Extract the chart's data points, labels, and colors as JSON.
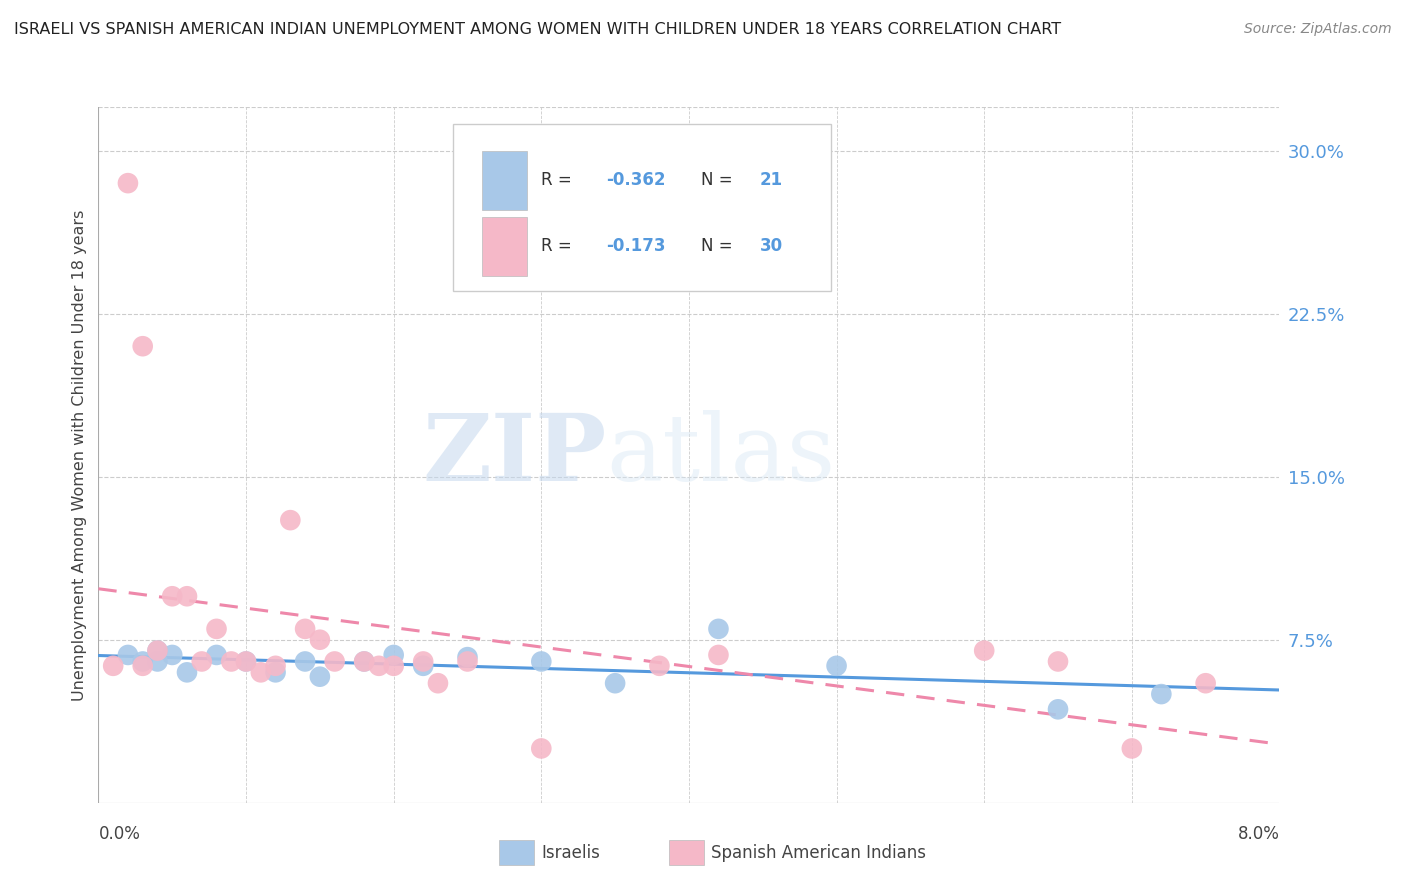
{
  "title": "ISRAELI VS SPANISH AMERICAN INDIAN UNEMPLOYMENT AMONG WOMEN WITH CHILDREN UNDER 18 YEARS CORRELATION CHART",
  "source": "Source: ZipAtlas.com",
  "ylabel": "Unemployment Among Women with Children Under 18 years",
  "ytick_labels": [
    "7.5%",
    "15.0%",
    "22.5%",
    "30.0%"
  ],
  "ytick_values": [
    0.075,
    0.15,
    0.225,
    0.3
  ],
  "xlim": [
    0.0,
    0.08
  ],
  "ylim": [
    0.0,
    0.32
  ],
  "watermark_zip": "ZIP",
  "watermark_atlas": "atlas",
  "legend_blue_R": "-0.362",
  "legend_blue_N": "21",
  "legend_pink_R": "-0.173",
  "legend_pink_N": "30",
  "blue_scatter_color": "#a8c8e8",
  "pink_scatter_color": "#f5b8c8",
  "blue_line_color": "#5599dd",
  "pink_line_color": "#ee88aa",
  "background_color": "#ffffff",
  "grid_color": "#cccccc",
  "israelis_x": [
    0.002,
    0.003,
    0.004,
    0.004,
    0.005,
    0.006,
    0.008,
    0.01,
    0.012,
    0.014,
    0.015,
    0.018,
    0.02,
    0.022,
    0.025,
    0.03,
    0.035,
    0.042,
    0.05,
    0.065,
    0.072
  ],
  "israelis_y": [
    0.068,
    0.065,
    0.07,
    0.065,
    0.068,
    0.06,
    0.068,
    0.065,
    0.06,
    0.065,
    0.058,
    0.065,
    0.068,
    0.063,
    0.067,
    0.065,
    0.055,
    0.08,
    0.063,
    0.043,
    0.05
  ],
  "spanish_x": [
    0.001,
    0.002,
    0.003,
    0.003,
    0.004,
    0.005,
    0.006,
    0.007,
    0.008,
    0.009,
    0.01,
    0.011,
    0.012,
    0.013,
    0.014,
    0.015,
    0.016,
    0.018,
    0.019,
    0.02,
    0.022,
    0.023,
    0.025,
    0.03,
    0.038,
    0.042,
    0.06,
    0.065,
    0.07,
    0.075
  ],
  "spanish_y": [
    0.063,
    0.285,
    0.063,
    0.21,
    0.07,
    0.095,
    0.095,
    0.065,
    0.08,
    0.065,
    0.065,
    0.06,
    0.063,
    0.13,
    0.08,
    0.075,
    0.065,
    0.065,
    0.063,
    0.063,
    0.065,
    0.055,
    0.065,
    0.025,
    0.063,
    0.068,
    0.07,
    0.065,
    0.025,
    0.055
  ]
}
